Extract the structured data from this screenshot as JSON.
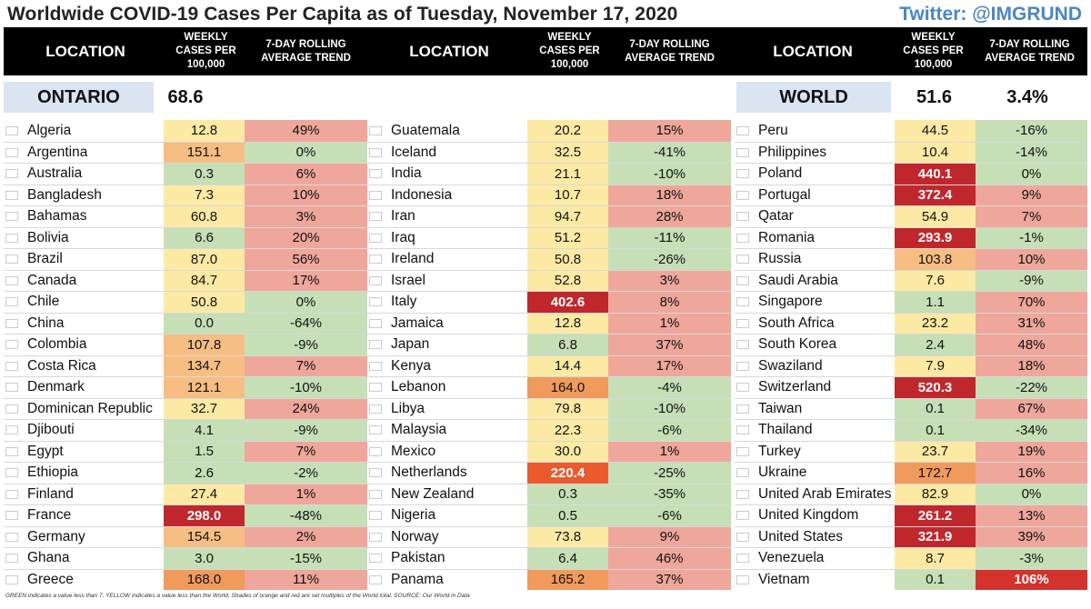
{
  "title": "Worldwide COVID-19 Cases Per Capita as of Tuesday, November 17, 2020",
  "twitter": "Twitter: @IMGRUND",
  "headers": {
    "location": "LOCATION",
    "weekly": "WEEKLY CASES PER 100,000",
    "trend": "7-DAY ROLLING AVERAGE TREND"
  },
  "summary": {
    "ontario": {
      "label": "ONTARIO",
      "value": "68.6"
    },
    "world": {
      "label": "WORLD",
      "value": "51.6",
      "trend": "3.4%"
    }
  },
  "colors": {
    "green": "#c6dfb6",
    "yellow": "#fce9a4",
    "orange": "#f6be83",
    "deep_orange": "#f09a5c",
    "red_orange": "#ea5a2e",
    "red": "#c0272d",
    "trend_red": "#eea79a",
    "trend_strong": "#d4322c"
  },
  "columns": [
    [
      [
        "Algeria",
        "12.8",
        "49%",
        "y",
        "r"
      ],
      [
        "Argentina",
        "151.1",
        "0%",
        "o",
        "g"
      ],
      [
        "Australia",
        "0.3",
        "6%",
        "g",
        "r"
      ],
      [
        "Bangladesh",
        "7.3",
        "10%",
        "y",
        "r"
      ],
      [
        "Bahamas",
        "60.8",
        "3%",
        "y",
        "r"
      ],
      [
        "Bolivia",
        "6.6",
        "20%",
        "g",
        "r"
      ],
      [
        "Brazil",
        "87.0",
        "56%",
        "y",
        "r"
      ],
      [
        "Canada",
        "84.7",
        "17%",
        "y",
        "r"
      ],
      [
        "Chile",
        "50.8",
        "0%",
        "y",
        "g"
      ],
      [
        "China",
        "0.0",
        "-64%",
        "g",
        "g"
      ],
      [
        "Colombia",
        "107.8",
        "-9%",
        "o",
        "g"
      ],
      [
        "Costa Rica",
        "134.7",
        "7%",
        "o",
        "r"
      ],
      [
        "Denmark",
        "121.1",
        "-10%",
        "o",
        "g"
      ],
      [
        "Dominican Republic",
        "32.7",
        "24%",
        "y",
        "r"
      ],
      [
        "Djibouti",
        "4.1",
        "-9%",
        "g",
        "g"
      ],
      [
        "Egypt",
        "1.5",
        "7%",
        "g",
        "r"
      ],
      [
        "Ethiopia",
        "2.6",
        "-2%",
        "g",
        "g"
      ],
      [
        "Finland",
        "27.4",
        "1%",
        "y",
        "r"
      ],
      [
        "France",
        "298.0",
        "-48%",
        "R",
        "g"
      ],
      [
        "Germany",
        "154.5",
        "2%",
        "o",
        "r"
      ],
      [
        "Ghana",
        "3.0",
        "-15%",
        "g",
        "g"
      ],
      [
        "Greece",
        "168.0",
        "11%",
        "O",
        "r"
      ]
    ],
    [
      [
        "Guatemala",
        "20.2",
        "15%",
        "y",
        "r"
      ],
      [
        "Iceland",
        "32.5",
        "-41%",
        "y",
        "g"
      ],
      [
        "India",
        "21.1",
        "-10%",
        "y",
        "g"
      ],
      [
        "Indonesia",
        "10.7",
        "18%",
        "y",
        "r"
      ],
      [
        "Iran",
        "94.7",
        "28%",
        "y",
        "r"
      ],
      [
        "Iraq",
        "51.2",
        "-11%",
        "y",
        "g"
      ],
      [
        "Ireland",
        "50.8",
        "-26%",
        "y",
        "g"
      ],
      [
        "Israel",
        "52.8",
        "3%",
        "y",
        "r"
      ],
      [
        "Italy",
        "402.6",
        "8%",
        "R",
        "r"
      ],
      [
        "Jamaica",
        "12.8",
        "1%",
        "y",
        "r"
      ],
      [
        "Japan",
        "6.8",
        "37%",
        "g",
        "r"
      ],
      [
        "Kenya",
        "14.4",
        "17%",
        "y",
        "r"
      ],
      [
        "Lebanon",
        "164.0",
        "-4%",
        "O",
        "g"
      ],
      [
        "Libya",
        "79.8",
        "-10%",
        "y",
        "g"
      ],
      [
        "Malaysia",
        "22.3",
        "-6%",
        "y",
        "g"
      ],
      [
        "Mexico",
        "30.0",
        "1%",
        "y",
        "r"
      ],
      [
        "Netherlands",
        "220.4",
        "-25%",
        "X",
        "g"
      ],
      [
        "New Zealand",
        "0.3",
        "-35%",
        "g",
        "g"
      ],
      [
        "Nigeria",
        "0.5",
        "-6%",
        "g",
        "g"
      ],
      [
        "Norway",
        "73.8",
        "9%",
        "y",
        "r"
      ],
      [
        "Pakistan",
        "6.4",
        "46%",
        "g",
        "r"
      ],
      [
        "Panama",
        "165.2",
        "37%",
        "O",
        "r"
      ]
    ],
    [
      [
        "Peru",
        "44.5",
        "-16%",
        "y",
        "g"
      ],
      [
        "Philippines",
        "10.4",
        "-14%",
        "y",
        "g"
      ],
      [
        "Poland",
        "440.1",
        "0%",
        "R",
        "g"
      ],
      [
        "Portugal",
        "372.4",
        "9%",
        "R",
        "r"
      ],
      [
        "Qatar",
        "54.9",
        "7%",
        "y",
        "r"
      ],
      [
        "Romania",
        "293.9",
        "-1%",
        "R",
        "g"
      ],
      [
        "Russia",
        "103.8",
        "10%",
        "o",
        "r"
      ],
      [
        "Saudi Arabia",
        "7.6",
        "-9%",
        "y",
        "g"
      ],
      [
        "Singapore",
        "1.1",
        "70%",
        "g",
        "r"
      ],
      [
        "South Africa",
        "23.2",
        "31%",
        "y",
        "r"
      ],
      [
        "South Korea",
        "2.4",
        "48%",
        "g",
        "r"
      ],
      [
        "Swaziland",
        "7.9",
        "18%",
        "y",
        "r"
      ],
      [
        "Switzerland",
        "520.3",
        "-22%",
        "R",
        "g"
      ],
      [
        "Taiwan",
        "0.1",
        "67%",
        "g",
        "r"
      ],
      [
        "Thailand",
        "0.1",
        "-34%",
        "g",
        "g"
      ],
      [
        "Turkey",
        "23.7",
        "19%",
        "y",
        "r"
      ],
      [
        "Ukraine",
        "172.7",
        "16%",
        "O",
        "r"
      ],
      [
        "United Arab Emirates",
        "82.9",
        "0%",
        "y",
        "g"
      ],
      [
        "United Kingdom",
        "261.2",
        "13%",
        "R",
        "r"
      ],
      [
        "United States",
        "321.9",
        "39%",
        "R",
        "r"
      ],
      [
        "Venezuela",
        "8.7",
        "-3%",
        "y",
        "g"
      ],
      [
        "Vietnam",
        "0.1",
        "106%",
        "g",
        "S"
      ]
    ]
  ],
  "footer": "GREEN indicates a value less than 7. YELLOW indicates a value less than the World. Shades of orange and red are set multiples of the World total. SOURCE: Our World in Data"
}
